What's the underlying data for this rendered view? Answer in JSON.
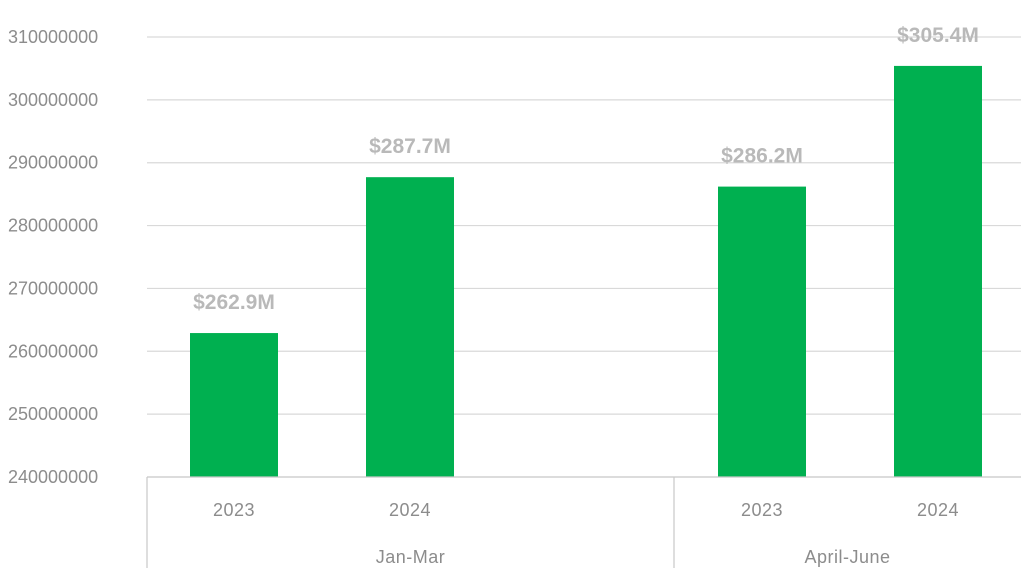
{
  "chart_data": {
    "type": "bar",
    "title": "",
    "xlabel": "",
    "ylabel": "",
    "ylim": [
      240000000,
      310000000
    ],
    "yticks": [
      "240000000",
      "250000000",
      "260000000",
      "270000000",
      "280000000",
      "290000000",
      "300000000",
      "310000000"
    ],
    "groups": [
      {
        "label": "Jan-Mar",
        "categories": [
          "2023",
          "2024"
        ],
        "values": [
          262900000,
          287700000
        ],
        "data_labels": [
          "$262.9M",
          "$287.7M"
        ]
      },
      {
        "label": "April-June",
        "categories": [
          "2023",
          "2024"
        ],
        "values": [
          286200000,
          305400000
        ],
        "data_labels": [
          "$286.2M",
          "$305.4M"
        ]
      }
    ],
    "bar_color": "#00b050",
    "grid": true,
    "legend": "none"
  }
}
